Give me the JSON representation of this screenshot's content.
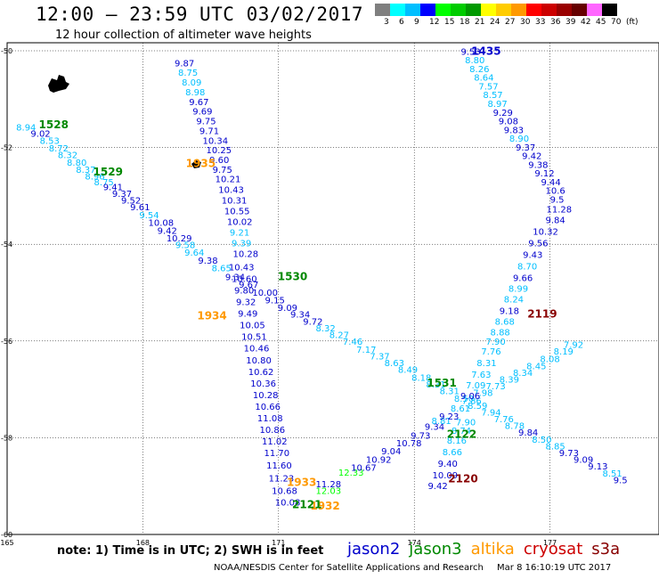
{
  "title": "12:00 – 23:59 UTC 03/02/2017",
  "subtitle": "12 hour collection of altimeter wave heights",
  "colorbar": {
    "labels": [
      "3",
      "6",
      "9",
      "12",
      "15",
      "18",
      "21",
      "24",
      "27",
      "30",
      "33",
      "36",
      "39",
      "42",
      "45",
      "70",
      "(ft)"
    ],
    "colors": [
      "#7f7f7f",
      "#00ffff",
      "#00bfff",
      "#0000ff",
      "#00ff00",
      "#00cc00",
      "#009900",
      "#ffff00",
      "#ffcc00",
      "#ff9900",
      "#ff0000",
      "#cc0000",
      "#990000",
      "#660000",
      "#ff66ff",
      "#000000"
    ]
  },
  "map": {
    "lon_labels": [
      "165",
      "168",
      "171",
      "174",
      "177"
    ],
    "lat_labels": [
      "-50",
      "-52",
      "-54",
      "-56",
      "-58",
      "-60"
    ]
  },
  "chart_data": {
    "type": "map",
    "region": {
      "lon_min": 165,
      "lon_max": 180,
      "lat_top": -50,
      "lat_bottom": -60
    },
    "colors": {
      "c9": "#00bfff",
      "c12": "#0000cc",
      "c15": "#00ff00",
      "green": "#008800",
      "orange": "#ff9900",
      "darkred": "#880000"
    },
    "labels": [
      {
        "lon": 168.7,
        "lat": -50.32,
        "t": "9.87",
        "c": "c12"
      },
      {
        "lon": 168.78,
        "lat": -50.52,
        "t": "8.75",
        "c": "c9"
      },
      {
        "lon": 168.86,
        "lat": -50.72,
        "t": "8.09",
        "c": "c9"
      },
      {
        "lon": 168.94,
        "lat": -50.92,
        "t": "8.98",
        "c": "c9"
      },
      {
        "lon": 169.02,
        "lat": -51.12,
        "t": "9.67",
        "c": "c12"
      },
      {
        "lon": 169.1,
        "lat": -51.32,
        "t": "9.69",
        "c": "c12"
      },
      {
        "lon": 169.18,
        "lat": -51.52,
        "t": "9.75",
        "c": "c12"
      },
      {
        "lon": 169.25,
        "lat": -51.72,
        "t": "9.71",
        "c": "c12"
      },
      {
        "lon": 169.32,
        "lat": -51.92,
        "t": "10.34",
        "c": "c12"
      },
      {
        "lon": 169.4,
        "lat": -52.12,
        "t": "10.25",
        "c": "c12"
      },
      {
        "lon": 169.47,
        "lat": -52.32,
        "t": "9.60",
        "c": "c12"
      },
      {
        "lon": 169.54,
        "lat": -52.52,
        "t": "9.75",
        "c": "c12"
      },
      {
        "lon": 169.6,
        "lat": -52.72,
        "t": "10.21",
        "c": "c12"
      },
      {
        "lon": 169.67,
        "lat": -52.94,
        "t": "10.43",
        "c": "c12"
      },
      {
        "lon": 169.74,
        "lat": -53.16,
        "t": "10.31",
        "c": "c12"
      },
      {
        "lon": 169.8,
        "lat": -53.38,
        "t": "10.55",
        "c": "c12"
      },
      {
        "lon": 169.86,
        "lat": -53.6,
        "t": "10.02",
        "c": "c12"
      },
      {
        "lon": 169.92,
        "lat": -53.82,
        "t": "9.21",
        "c": "c9"
      },
      {
        "lon": 169.96,
        "lat": -54.04,
        "t": "9.39",
        "c": "c9"
      },
      {
        "lon": 169.99,
        "lat": -54.26,
        "t": "10.28",
        "c": "c12"
      },
      {
        "lon": 169.9,
        "lat": -54.54,
        "t": "10.43",
        "c": "c12"
      },
      {
        "lon": 169.96,
        "lat": -54.78,
        "t": "10.60",
        "c": "c12"
      },
      {
        "lon": 170.02,
        "lat": -55.02,
        "t": "9.80",
        "c": "c12"
      },
      {
        "lon": 170.06,
        "lat": -55.26,
        "t": "9.32",
        "c": "c12"
      },
      {
        "lon": 170.1,
        "lat": -55.5,
        "t": "9.49",
        "c": "c12"
      },
      {
        "lon": 170.14,
        "lat": -55.74,
        "t": "10.05",
        "c": "c12"
      },
      {
        "lon": 170.18,
        "lat": -55.98,
        "t": "10.51",
        "c": "c12"
      },
      {
        "lon": 170.23,
        "lat": -56.22,
        "t": "10.46",
        "c": "c12"
      },
      {
        "lon": 170.28,
        "lat": -56.46,
        "t": "10.80",
        "c": "c12"
      },
      {
        "lon": 170.33,
        "lat": -56.7,
        "t": "10.62",
        "c": "c12"
      },
      {
        "lon": 170.38,
        "lat": -56.94,
        "t": "10.36",
        "c": "c12"
      },
      {
        "lon": 170.43,
        "lat": -57.18,
        "t": "10.28",
        "c": "c12"
      },
      {
        "lon": 170.48,
        "lat": -57.42,
        "t": "10.66",
        "c": "c12"
      },
      {
        "lon": 170.53,
        "lat": -57.66,
        "t": "11.08",
        "c": "c12"
      },
      {
        "lon": 170.58,
        "lat": -57.9,
        "t": "10.86",
        "c": "c12"
      },
      {
        "lon": 170.63,
        "lat": -58.14,
        "t": "11.02",
        "c": "c12"
      },
      {
        "lon": 170.68,
        "lat": -58.38,
        "t": "11.70",
        "c": "c12"
      },
      {
        "lon": 170.73,
        "lat": -58.64,
        "t": "11.60",
        "c": "c12"
      },
      {
        "lon": 170.78,
        "lat": -58.9,
        "t": "11.23",
        "c": "c12"
      },
      {
        "lon": 170.85,
        "lat": -59.16,
        "t": "10.68",
        "c": "c12"
      },
      {
        "lon": 170.92,
        "lat": -59.4,
        "t": "10.08",
        "c": "c12"
      },
      {
        "lon": 171.82,
        "lat": -59.16,
        "t": "12.03",
        "c": "c15"
      },
      {
        "lon": 171.82,
        "lat": -59.02,
        "t": "11.28",
        "c": "c12"
      },
      {
        "lon": 172.32,
        "lat": -58.78,
        "t": "12.33",
        "c": "c15"
      },
      {
        "lon": 172.6,
        "lat": -58.68,
        "t": "10.67",
        "c": "c12"
      },
      {
        "lon": 172.93,
        "lat": -58.52,
        "t": "10.92",
        "c": "c12"
      },
      {
        "lon": 173.27,
        "lat": -58.34,
        "t": "9.04",
        "c": "c12"
      },
      {
        "lon": 173.6,
        "lat": -58.18,
        "t": "10.78",
        "c": "c12"
      },
      {
        "lon": 173.92,
        "lat": -58.02,
        "t": "9.73",
        "c": "c12"
      },
      {
        "lon": 174.23,
        "lat": -57.84,
        "t": "9.34",
        "c": "c12"
      },
      {
        "lon": 174.38,
        "lat": -57.72,
        "t": "8.81",
        "c": "c9"
      },
      {
        "lon": 174.55,
        "lat": -57.62,
        "t": "9.23",
        "c": "c12"
      },
      {
        "lon": 174.8,
        "lat": -57.46,
        "t": "8.61",
        "c": "c9"
      },
      {
        "lon": 175.05,
        "lat": -57.3,
        "t": "7.86",
        "c": "c9"
      },
      {
        "lon": 175.3,
        "lat": -57.14,
        "t": "7.98",
        "c": "c9"
      },
      {
        "lon": 175.58,
        "lat": -57.0,
        "t": "7.73",
        "c": "c9"
      },
      {
        "lon": 175.88,
        "lat": -56.86,
        "t": "8.39",
        "c": "c9"
      },
      {
        "lon": 176.18,
        "lat": -56.72,
        "t": "8.34",
        "c": "c9"
      },
      {
        "lon": 176.48,
        "lat": -56.58,
        "t": "8.45",
        "c": "c9"
      },
      {
        "lon": 176.78,
        "lat": -56.44,
        "t": "8.08",
        "c": "c9"
      },
      {
        "lon": 177.08,
        "lat": -56.28,
        "t": "8.19",
        "c": "c9"
      },
      {
        "lon": 177.3,
        "lat": -56.14,
        "t": "7.92",
        "c": "c9"
      },
      {
        "lon": 165.2,
        "lat": -51.65,
        "t": "8.94",
        "c": "c9"
      },
      {
        "lon": 165.52,
        "lat": -51.78,
        "t": "9.02",
        "c": "c12"
      },
      {
        "lon": 165.72,
        "lat": -51.92,
        "t": "8.53",
        "c": "c9"
      },
      {
        "lon": 165.92,
        "lat": -52.08,
        "t": "8.72",
        "c": "c9"
      },
      {
        "lon": 166.12,
        "lat": -52.22,
        "t": "8.32",
        "c": "c9"
      },
      {
        "lon": 166.32,
        "lat": -52.38,
        "t": "8.80",
        "c": "c9"
      },
      {
        "lon": 166.52,
        "lat": -52.52,
        "t": "8.37",
        "c": "c9"
      },
      {
        "lon": 166.72,
        "lat": -52.66,
        "t": "8.96",
        "c": "c9"
      },
      {
        "lon": 166.92,
        "lat": -52.78,
        "t": "8.75",
        "c": "c9"
      },
      {
        "lon": 167.12,
        "lat": -52.88,
        "t": "9.41",
        "c": "c12"
      },
      {
        "lon": 167.32,
        "lat": -53.02,
        "t": "9.37",
        "c": "c12"
      },
      {
        "lon": 167.52,
        "lat": -53.16,
        "t": "9.52",
        "c": "c12"
      },
      {
        "lon": 167.72,
        "lat": -53.3,
        "t": "9.61",
        "c": "c12"
      },
      {
        "lon": 167.92,
        "lat": -53.46,
        "t": "9.54",
        "c": "c9"
      },
      {
        "lon": 168.12,
        "lat": -53.62,
        "t": "10.08",
        "c": "c12"
      },
      {
        "lon": 168.32,
        "lat": -53.78,
        "t": "9.42",
        "c": "c12"
      },
      {
        "lon": 168.52,
        "lat": -53.94,
        "t": "10.29",
        "c": "c12"
      },
      {
        "lon": 168.72,
        "lat": -54.08,
        "t": "9.58",
        "c": "c9"
      },
      {
        "lon": 168.92,
        "lat": -54.24,
        "t": "9.64",
        "c": "c9"
      },
      {
        "lon": 169.22,
        "lat": -54.4,
        "t": "9.38",
        "c": "c12"
      },
      {
        "lon": 169.52,
        "lat": -54.56,
        "t": "8.65",
        "c": "c9"
      },
      {
        "lon": 169.82,
        "lat": -54.74,
        "t": "9.34",
        "c": "c12"
      },
      {
        "lon": 170.12,
        "lat": -54.9,
        "t": "9.67",
        "c": "c12"
      },
      {
        "lon": 170.42,
        "lat": -55.06,
        "t": "10.00",
        "c": "c12"
      },
      {
        "lon": 170.7,
        "lat": -55.22,
        "t": "9.15",
        "c": "c12"
      },
      {
        "lon": 170.98,
        "lat": -55.38,
        "t": "9.09",
        "c": "c12"
      },
      {
        "lon": 171.26,
        "lat": -55.52,
        "t": "9.34",
        "c": "c12"
      },
      {
        "lon": 171.54,
        "lat": -55.66,
        "t": "9.72",
        "c": "c12"
      },
      {
        "lon": 171.82,
        "lat": -55.8,
        "t": "8.32",
        "c": "c9"
      },
      {
        "lon": 172.12,
        "lat": -55.94,
        "t": "8.27",
        "c": "c9"
      },
      {
        "lon": 172.42,
        "lat": -56.08,
        "t": "7.46",
        "c": "c9"
      },
      {
        "lon": 172.72,
        "lat": -56.24,
        "t": "7.17",
        "c": "c9"
      },
      {
        "lon": 173.02,
        "lat": -56.38,
        "t": "7.37",
        "c": "c9"
      },
      {
        "lon": 173.34,
        "lat": -56.52,
        "t": "8.63",
        "c": "c9"
      },
      {
        "lon": 173.64,
        "lat": -56.66,
        "t": "8.49",
        "c": "c9"
      },
      {
        "lon": 173.94,
        "lat": -56.82,
        "t": "8.18",
        "c": "c9"
      },
      {
        "lon": 174.26,
        "lat": -56.96,
        "t": "8.31",
        "c": "c9"
      },
      {
        "lon": 174.56,
        "lat": -57.1,
        "t": "8.31",
        "c": "c9"
      },
      {
        "lon": 174.88,
        "lat": -57.26,
        "t": "8.50",
        "c": "c9"
      },
      {
        "lon": 175.18,
        "lat": -57.4,
        "t": "8.59",
        "c": "c9"
      },
      {
        "lon": 175.48,
        "lat": -57.54,
        "t": "7.94",
        "c": "c9"
      },
      {
        "lon": 175.76,
        "lat": -57.68,
        "t": "7.76",
        "c": "c9"
      },
      {
        "lon": 176.0,
        "lat": -57.82,
        "t": "8.78",
        "c": "c9"
      },
      {
        "lon": 176.3,
        "lat": -57.96,
        "t": "9.84",
        "c": "c12"
      },
      {
        "lon": 176.6,
        "lat": -58.1,
        "t": "8.50",
        "c": "c9"
      },
      {
        "lon": 176.9,
        "lat": -58.24,
        "t": "8.85",
        "c": "c9"
      },
      {
        "lon": 177.2,
        "lat": -58.38,
        "t": "9.73",
        "c": "c12"
      },
      {
        "lon": 177.52,
        "lat": -58.52,
        "t": "9.09",
        "c": "c12"
      },
      {
        "lon": 177.84,
        "lat": -58.66,
        "t": "9.13",
        "c": "c12"
      },
      {
        "lon": 178.16,
        "lat": -58.8,
        "t": "8.51",
        "c": "c9"
      },
      {
        "lon": 178.4,
        "lat": -58.94,
        "t": "9.5",
        "c": "c12"
      },
      {
        "lon": 175.03,
        "lat": -50.08,
        "t": "9.53",
        "c": "c12"
      },
      {
        "lon": 175.12,
        "lat": -50.26,
        "t": "8.80",
        "c": "c9"
      },
      {
        "lon": 175.22,
        "lat": -50.44,
        "t": "8.26",
        "c": "c9"
      },
      {
        "lon": 175.32,
        "lat": -50.62,
        "t": "8.64",
        "c": "c9"
      },
      {
        "lon": 175.42,
        "lat": -50.8,
        "t": "7.57",
        "c": "c9"
      },
      {
        "lon": 175.52,
        "lat": -50.98,
        "t": "8.57",
        "c": "c9"
      },
      {
        "lon": 175.62,
        "lat": -51.16,
        "t": "8.97",
        "c": "c9"
      },
      {
        "lon": 175.74,
        "lat": -51.34,
        "t": "9.29",
        "c": "c12"
      },
      {
        "lon": 175.86,
        "lat": -51.52,
        "t": "9.08",
        "c": "c12"
      },
      {
        "lon": 175.98,
        "lat": -51.7,
        "t": "9.83",
        "c": "c12"
      },
      {
        "lon": 176.1,
        "lat": -51.88,
        "t": "8.90",
        "c": "c9"
      },
      {
        "lon": 176.24,
        "lat": -52.06,
        "t": "9.37",
        "c": "c12"
      },
      {
        "lon": 176.38,
        "lat": -52.24,
        "t": "9.42",
        "c": "c12"
      },
      {
        "lon": 176.52,
        "lat": -52.42,
        "t": "9.38",
        "c": "c12"
      },
      {
        "lon": 176.66,
        "lat": -52.6,
        "t": "9.12",
        "c": "c12"
      },
      {
        "lon": 176.8,
        "lat": -52.78,
        "t": "9.44",
        "c": "c12"
      },
      {
        "lon": 176.9,
        "lat": -52.96,
        "t": "10.6",
        "c": "c12"
      },
      {
        "lon": 177.0,
        "lat": -53.14,
        "t": "9.5",
        "c": "c12"
      },
      {
        "lon": 176.92,
        "lat": -53.34,
        "t": "11.28",
        "c": "c12"
      },
      {
        "lon": 176.9,
        "lat": -53.56,
        "t": "9.84",
        "c": "c12"
      },
      {
        "lon": 176.62,
        "lat": -53.8,
        "t": "10.32",
        "c": "c12"
      },
      {
        "lon": 176.52,
        "lat": -54.04,
        "t": "9.56",
        "c": "c12"
      },
      {
        "lon": 176.4,
        "lat": -54.28,
        "t": "9.43",
        "c": "c12"
      },
      {
        "lon": 176.28,
        "lat": -54.52,
        "t": "8.70",
        "c": "c9"
      },
      {
        "lon": 176.18,
        "lat": -54.76,
        "t": "9.66",
        "c": "c12"
      },
      {
        "lon": 176.08,
        "lat": -54.98,
        "t": "8.99",
        "c": "c9"
      },
      {
        "lon": 175.98,
        "lat": -55.2,
        "t": "8.24",
        "c": "c9"
      },
      {
        "lon": 175.88,
        "lat": -55.44,
        "t": "9.18",
        "c": "c12"
      },
      {
        "lon": 175.78,
        "lat": -55.66,
        "t": "8.68",
        "c": "c9"
      },
      {
        "lon": 175.68,
        "lat": -55.88,
        "t": "8.88",
        "c": "c9"
      },
      {
        "lon": 175.58,
        "lat": -56.08,
        "t": "7.90",
        "c": "c9"
      },
      {
        "lon": 175.48,
        "lat": -56.28,
        "t": "7.76",
        "c": "c9"
      },
      {
        "lon": 175.38,
        "lat": -56.52,
        "t": "8.31",
        "c": "c9"
      },
      {
        "lon": 175.26,
        "lat": -56.76,
        "t": "7.63",
        "c": "c9"
      },
      {
        "lon": 175.14,
        "lat": -56.98,
        "t": "7.09",
        "c": "c9"
      },
      {
        "lon": 175.02,
        "lat": -57.2,
        "t": "9.06",
        "c": "c12"
      },
      {
        "lon": 174.92,
        "lat": -57.74,
        "t": "7.90",
        "c": "c9"
      },
      {
        "lon": 174.82,
        "lat": -57.92,
        "t": "8.74",
        "c": "c9"
      },
      {
        "lon": 174.72,
        "lat": -58.12,
        "t": "8.16",
        "c": "c9"
      },
      {
        "lon": 174.62,
        "lat": -58.36,
        "t": "8.66",
        "c": "c9"
      },
      {
        "lon": 174.52,
        "lat": -58.6,
        "t": "9.40",
        "c": "c12"
      },
      {
        "lon": 174.4,
        "lat": -58.84,
        "t": "10.09",
        "c": "c12"
      },
      {
        "lon": 174.3,
        "lat": -59.06,
        "t": "9.42",
        "c": "c12"
      }
    ],
    "time_labels": [
      {
        "lon": 165.7,
        "lat": -51.6,
        "t": "1528",
        "c": "green"
      },
      {
        "lon": 166.9,
        "lat": -52.58,
        "t": "1529",
        "c": "green"
      },
      {
        "lon": 170.98,
        "lat": -54.74,
        "t": "1530",
        "c": "green"
      },
      {
        "lon": 174.28,
        "lat": -56.94,
        "t": "1531",
        "c": "green"
      },
      {
        "lon": 175.26,
        "lat": -50.08,
        "t": "1435",
        "c": "c12"
      },
      {
        "lon": 168.95,
        "lat": -52.4,
        "t": "1935",
        "c": "orange"
      },
      {
        "lon": 169.2,
        "lat": -55.55,
        "t": "1934",
        "c": "orange"
      },
      {
        "lon": 171.18,
        "lat": -59.0,
        "t": "1933",
        "c": "orange"
      },
      {
        "lon": 171.7,
        "lat": -59.48,
        "t": "1932",
        "c": "orange"
      },
      {
        "lon": 171.3,
        "lat": -59.46,
        "t": "2121",
        "c": "green"
      },
      {
        "lon": 174.72,
        "lat": -58.0,
        "t": "2122",
        "c": "green"
      },
      {
        "lon": 176.5,
        "lat": -55.52,
        "t": "2119",
        "c": "darkred"
      },
      {
        "lon": 174.75,
        "lat": -58.92,
        "t": "2120",
        "c": "darkred"
      }
    ]
  },
  "note": "note:  1) Time is in UTC;  2) SWH is in feet",
  "legend": [
    {
      "name": "jason2",
      "color": "#0000cc"
    },
    {
      "name": "jason3",
      "color": "#008800"
    },
    {
      "name": "altika",
      "color": "#ff9900"
    },
    {
      "name": "cryosat",
      "color": "#cc0000"
    },
    {
      "name": "s3a",
      "color": "#880000"
    }
  ],
  "footer": {
    "left": "NOAA/NESDIS Center for Satellite Applications and Research",
    "right": "Mar  8 16:10:19 UTC 2017"
  }
}
